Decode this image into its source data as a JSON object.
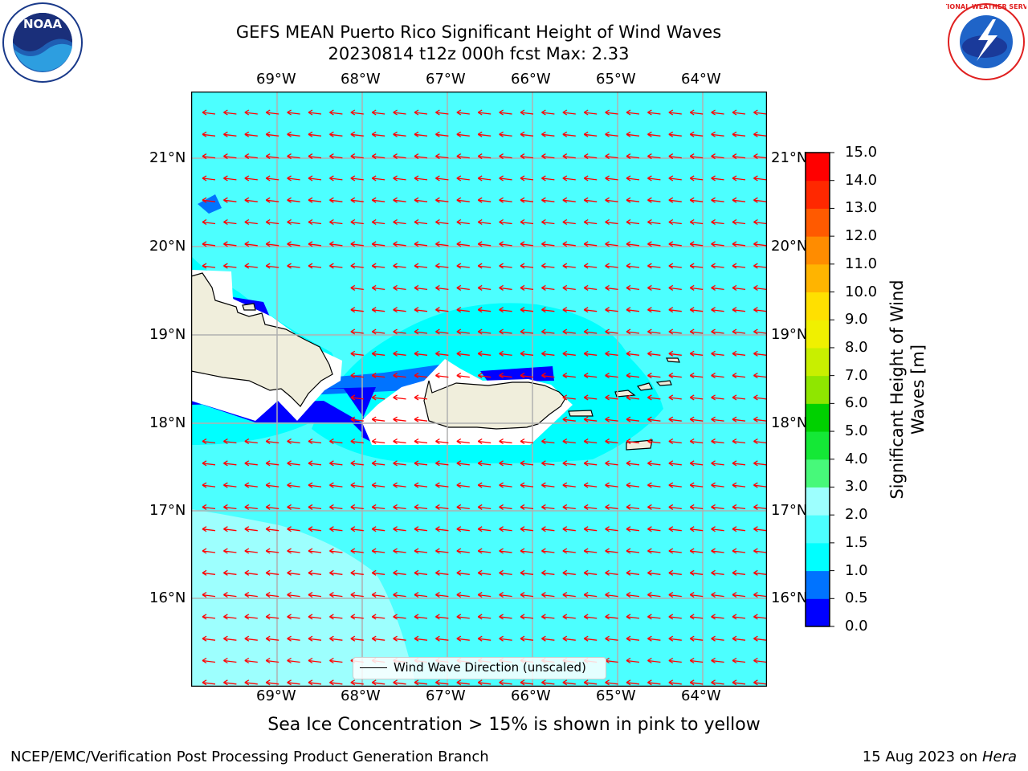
{
  "title_line1": "GEFS MEAN Puerto Rico Significant Height of Wind Waves",
  "title_line2": "20230814 t12z 000h fcst   Max: 2.33",
  "lon_labels": [
    "69°W",
    "68°W",
    "67°W",
    "66°W",
    "65°W",
    "64°W"
  ],
  "lat_labels": [
    "21°N",
    "20°N",
    "19°N",
    "18°N",
    "17°N",
    "16°N"
  ],
  "colorbar": {
    "title": "Significant Height of Wind Waves [m]",
    "ticks": [
      "0.0",
      "0.5",
      "1.0",
      "1.5",
      "2.0",
      "3.0",
      "4.0",
      "5.0",
      "6.0",
      "7.0",
      "8.0",
      "9.0",
      "10.0",
      "11.0",
      "12.0",
      "13.0",
      "14.0",
      "15.0"
    ],
    "colors": [
      "#0000ff",
      "#0073ff",
      "#00ffff",
      "#4cffff",
      "#9dfffe",
      "#47f97a",
      "#14e836",
      "#00d100",
      "#8fe600",
      "#c8ef00",
      "#f0f000",
      "#ffe000",
      "#ffb400",
      "#ff8c00",
      "#ff5a00",
      "#ff2800",
      "#ff0000"
    ]
  },
  "legend_label": "Wind Wave Direction (unscaled)",
  "note": "Sea Ice Concentration > 15% is shown in pink to yellow",
  "footer_left": "NCEP/EMC/Verification Post Processing Product Generation Branch",
  "footer_right_prefix": "15 Aug 2023 on ",
  "footer_right_host": "Hera",
  "logos": {
    "noaa": {
      "icon": "noaa-logo",
      "text": "NOAA"
    },
    "nws": {
      "icon": "nws-logo",
      "text": "NATIONAL WEATHER SERVICE"
    }
  },
  "colors": {
    "water_mid": "#4cffff",
    "water_low": "#00ffff",
    "water_high": "#9dfffe",
    "shallow": "#0073ff",
    "deep": "#0000ff",
    "land": "#f0eedc",
    "arrow": "#ff0000",
    "grid": "#b0b0b0"
  }
}
